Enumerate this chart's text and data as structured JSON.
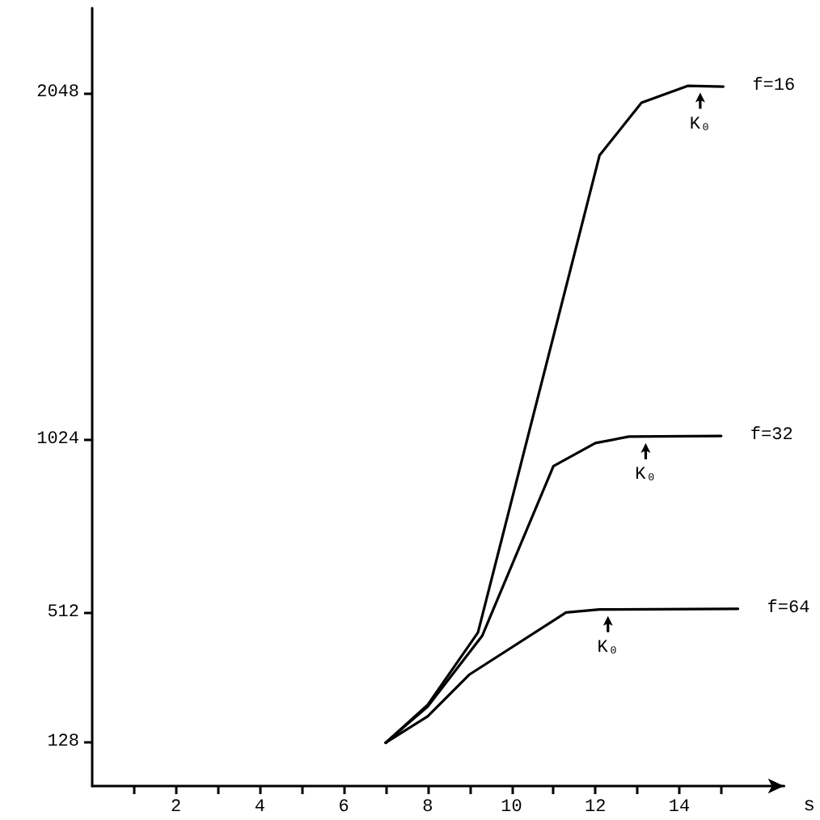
{
  "chart_data": {
    "type": "line",
    "xlabel": "s",
    "xlim": [
      0,
      16.5
    ],
    "xticks": [
      {
        "value": 1,
        "label": null
      },
      2,
      {
        "value": 3,
        "label": null
      },
      4,
      {
        "value": 5,
        "label": null
      },
      6,
      {
        "value": 7,
        "label": null
      },
      8,
      {
        "value": 9,
        "label": null
      },
      10,
      {
        "value": 11,
        "label": null
      },
      12,
      {
        "value": 13,
        "label": null
      },
      14,
      {
        "value": 15,
        "label": null
      }
    ],
    "ylim": [
      0,
      2300
    ],
    "yticks": [
      128,
      512,
      1024,
      2048
    ],
    "series": [
      {
        "name": "f=16",
        "color": "#000000",
        "x": [
          7,
          8,
          9.2,
          12.1,
          13.1,
          14.2,
          15.05
        ],
        "values": [
          128,
          240,
          454,
          1865,
          2020,
          2070,
          2068
        ]
      },
      {
        "name": "f=32",
        "color": "#000000",
        "x": [
          7,
          8,
          9.3,
          11,
          12,
          12.8,
          15
        ],
        "values": [
          128,
          235,
          444,
          946,
          1014,
          1033,
          1035
        ]
      },
      {
        "name": "f=64",
        "color": "#000000",
        "x": [
          7,
          8,
          9,
          11.3,
          12.1,
          15.4
        ],
        "values": [
          128,
          206,
          330,
          513,
          522,
          524
        ]
      }
    ],
    "annotations": [
      {
        "text": "K₀",
        "x": 14.5,
        "y": 2069
      },
      {
        "text": "K₀",
        "x": 13.2,
        "y": 1033
      },
      {
        "text": "K₀",
        "x": 12.3,
        "y": 522
      }
    ],
    "grid": false,
    "legend": false,
    "marker": "none",
    "line_style": "solid"
  }
}
